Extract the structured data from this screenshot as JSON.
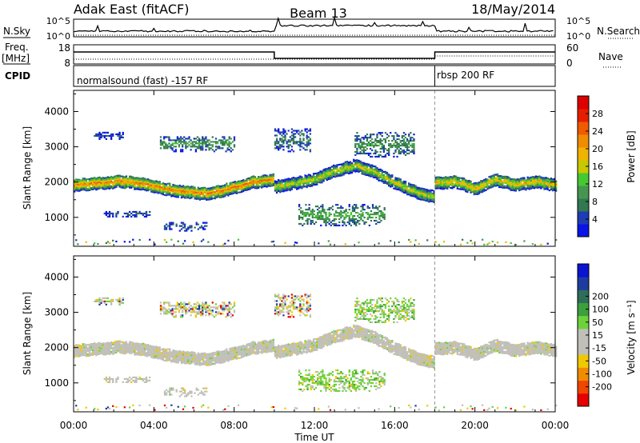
{
  "header": {
    "station": "Adak East (fitACF)",
    "beam": "Beam 13",
    "date": "18/May/2014"
  },
  "nsky_panel": {
    "left_label": "N.Sky",
    "left_ticks": [
      "10^5",
      "10^0"
    ],
    "right_ticks": [
      "10^5",
      "10^0"
    ],
    "right_label": "N.Search"
  },
  "freq_panel": {
    "left_label_1": "Freq.",
    "left_label_2": "[MHz]",
    "left_ticks": [
      "18",
      "8"
    ],
    "right_ticks": [
      "60",
      "0"
    ],
    "right_label": "Nave"
  },
  "cpid_panel": {
    "label": "CPID",
    "programs": [
      "normalsound (fast) -157 RF",
      "rbsp 200 RF"
    ]
  },
  "colors": {
    "power_scale": [
      "#0a14e6",
      "#1e3cb4",
      "#327850",
      "#469650",
      "#46c832",
      "#c8c800",
      "#f0b400",
      "#f08c00",
      "#f05a00",
      "#e61e00",
      "#dc0000"
    ],
    "velocity_scale": [
      "#e60000",
      "#f04600",
      "#f08c00",
      "#f0c800",
      "#c0c0b8",
      "#c0c0b8",
      "#6ed23c",
      "#3ca03c",
      "#2d6e5a",
      "#1e3ca0",
      "#0a14d2"
    ]
  },
  "chart_data": [
    {
      "type": "heatmap",
      "name": "power",
      "ylabel": "Slant Range [km]",
      "yticks": [
        "1000",
        "2000",
        "3000",
        "4000"
      ],
      "ylim": [
        180,
        4600
      ],
      "xlim_hours": [
        0,
        24
      ],
      "colorbar_label": "Power [dB]",
      "colorbar_ticks": [
        "4",
        "8",
        "12",
        "16",
        "20",
        "24",
        "28"
      ],
      "colorbar_range": [
        0,
        32
      ]
    },
    {
      "type": "heatmap",
      "name": "velocity",
      "ylabel": "Slant Range [km]",
      "yticks": [
        "1000",
        "2000",
        "3000",
        "4000"
      ],
      "ylim": [
        180,
        4600
      ],
      "xlim_hours": [
        0,
        24
      ],
      "colorbar_label": "Velocity [m s⁻¹]",
      "colorbar_ticks": [
        "-200",
        "-100",
        "-50",
        "-15",
        "15",
        "50",
        "100",
        "200"
      ]
    }
  ],
  "x_axis": {
    "ticks": [
      "00:00",
      "04:00",
      "08:00",
      "12:00",
      "16:00",
      "20:00",
      "00:00"
    ],
    "tick_hours": [
      0,
      4,
      8,
      12,
      16,
      20,
      24
    ],
    "label": "Time UT"
  },
  "echo_regions": [
    {
      "kind": "band",
      "t": [
        0,
        10
      ],
      "center": [
        1900,
        1950,
        2000,
        1950,
        1800,
        1700,
        1650,
        1800,
        1980,
        2050
      ],
      "halfwidth": 170,
      "core": 24,
      "vel": "low"
    },
    {
      "kind": "band",
      "t": [
        10,
        18
      ],
      "center": [
        1850,
        1950,
        2050,
        2300,
        2450,
        2250,
        1950,
        1700,
        1550
      ],
      "halfwidth": 160,
      "core": 18,
      "vel": "low"
    },
    {
      "kind": "band",
      "t": [
        18,
        24
      ],
      "center": [
        1950,
        2000,
        1800,
        2050,
        1900,
        2000,
        1900
      ],
      "halfwidth": 170,
      "core": 20,
      "vel": "low"
    },
    {
      "kind": "blob",
      "t": [
        4.3,
        8.0
      ],
      "r": [
        2850,
        3300
      ],
      "core": 10,
      "vel": "mixed"
    },
    {
      "kind": "blob",
      "t": [
        1.0,
        2.5
      ],
      "r": [
        3200,
        3400
      ],
      "core": 6,
      "vel": "mixed"
    },
    {
      "kind": "blob",
      "t": [
        10.0,
        11.8
      ],
      "r": [
        2850,
        3500
      ],
      "core": 8,
      "vel": "mixed"
    },
    {
      "kind": "blob",
      "t": [
        14.0,
        17.0
      ],
      "r": [
        2700,
        3400
      ],
      "core": 10,
      "vel": "pos"
    },
    {
      "kind": "blob",
      "t": [
        11.2,
        15.5
      ],
      "r": [
        750,
        1350
      ],
      "core": 12,
      "vel": "pos"
    },
    {
      "kind": "blob",
      "t": [
        4.5,
        6.6
      ],
      "r": [
        600,
        850
      ],
      "core": 6,
      "vel": "low"
    },
    {
      "kind": "blob",
      "t": [
        1.5,
        3.8
      ],
      "r": [
        1000,
        1150
      ],
      "core": 5,
      "vel": "low"
    }
  ]
}
